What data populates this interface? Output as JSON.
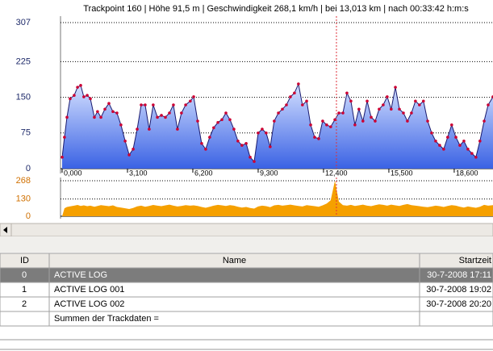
{
  "header": {
    "status": "Trackpoint 160  |  Höhe 91,5 m  |  Geschwindigkeit 268,1 km/h  |  bei  13,013 km  |  nach  00:33:42 h:m:s"
  },
  "chart_data": [
    {
      "type": "area",
      "x": [
        0,
        0.11,
        0.23,
        0.38,
        0.57,
        0.73,
        0.88,
        1.03,
        1.19,
        1.34,
        1.53,
        1.68,
        1.84,
        2.03,
        2.22,
        2.41,
        2.6,
        2.79,
        2.99,
        3.18,
        3.37,
        3.56,
        3.75,
        3.94,
        4.13,
        4.32,
        4.52,
        4.71,
        4.9,
        5.09,
        5.28,
        5.47,
        5.66,
        5.86,
        6.08,
        6.24,
        6.43,
        6.62,
        6.81,
        7.0,
        7.19,
        7.39,
        7.58,
        7.77,
        7.96,
        8.15,
        8.34,
        8.53,
        8.73,
        8.92,
        9.11,
        9.3,
        9.49,
        9.68,
        9.87,
        10.06,
        10.26,
        10.45,
        10.64,
        10.83,
        11.02,
        11.21,
        11.4,
        11.6,
        11.79,
        11.98,
        12.17,
        12.36,
        12.55,
        12.74,
        12.94,
        13.13,
        13.32,
        13.51,
        13.7,
        13.89,
        14.08,
        14.27,
        14.47,
        14.66,
        14.85,
        15.04,
        15.23,
        15.42,
        15.61,
        15.81,
        16.0,
        16.19,
        16.38,
        16.57,
        16.76,
        16.95,
        17.14,
        17.34,
        17.53,
        17.72,
        17.91,
        18.1,
        18.29,
        18.48,
        18.68,
        18.87,
        19.06,
        19.25,
        19.44,
        19.63,
        19.82,
        20.02,
        20.21,
        20.44
      ],
      "series": [
        {
          "color": "#1a1a6e",
          "marker_color": "#cc0033",
          "fill_top": "#d4e0ff",
          "fill_bottom": "#3a62e4",
          "values": [
            24,
            66,
            108,
            147,
            154,
            171,
            175,
            151,
            154,
            147,
            108,
            120,
            108,
            125,
            137,
            120,
            117,
            92,
            58,
            29,
            41,
            83,
            134,
            134,
            83,
            134,
            108,
            112,
            108,
            117,
            134,
            83,
            117,
            134,
            142,
            151,
            100,
            53,
            41,
            66,
            86,
            97,
            103,
            117,
            103,
            83,
            58,
            49,
            53,
            24,
            15,
            75,
            83,
            75,
            46,
            100,
            117,
            125,
            134,
            151,
            159,
            178,
            134,
            142,
            92,
            66,
            63,
            100,
            92,
            88,
            103,
            117,
            117,
            159,
            142,
            92,
            125,
            100,
            142,
            108,
            100,
            125,
            134,
            151,
            125,
            171,
            125,
            117,
            100,
            117,
            142,
            134,
            142,
            100,
            75,
            58,
            49,
            41,
            66,
            92,
            66,
            49,
            58,
            41,
            32,
            24,
            58,
            100,
            134,
            151
          ]
        }
      ],
      "xlim": [
        0,
        20.44
      ],
      "ylim": [
        0,
        307
      ],
      "xticks": [
        {
          "value": 0,
          "label": "0,000"
        },
        {
          "value": 3.1,
          "label": "3,100"
        },
        {
          "value": 6.2,
          "label": "6,200"
        },
        {
          "value": 9.3,
          "label": "9,300"
        },
        {
          "value": 12.4,
          "label": "12,400"
        },
        {
          "value": 15.5,
          "label": "15,500"
        },
        {
          "value": 18.6,
          "label": "18,600"
        }
      ],
      "yticks": [
        0,
        75,
        150,
        225,
        307
      ],
      "grid": true,
      "cursor_x": 13.013,
      "cursor_color": "#e0303a",
      "tick_color": "#1e2a6a"
    },
    {
      "type": "area",
      "x": [
        0,
        0.11,
        0.23,
        0.38,
        0.57,
        0.73,
        0.88,
        1.03,
        1.19,
        1.34,
        1.53,
        1.68,
        1.84,
        2.03,
        2.22,
        2.41,
        2.6,
        2.79,
        2.99,
        3.18,
        3.37,
        3.56,
        3.75,
        3.94,
        4.13,
        4.32,
        4.52,
        4.71,
        4.9,
        5.09,
        5.28,
        5.47,
        5.66,
        5.86,
        6.08,
        6.24,
        6.43,
        6.62,
        6.81,
        7.0,
        7.19,
        7.39,
        7.58,
        7.77,
        7.96,
        8.15,
        8.34,
        8.53,
        8.73,
        8.92,
        9.11,
        9.3,
        9.49,
        9.68,
        9.87,
        10.06,
        10.26,
        10.45,
        10.64,
        10.83,
        11.02,
        11.21,
        11.4,
        11.6,
        11.79,
        11.98,
        12.17,
        12.36,
        12.55,
        12.74,
        12.94,
        13.13,
        13.32,
        13.51,
        13.7,
        13.89,
        14.08,
        14.27,
        14.47,
        14.66,
        14.85,
        15.04,
        15.23,
        15.42,
        15.61,
        15.81,
        16.0,
        16.19,
        16.38,
        16.57,
        16.76,
        16.95,
        17.14,
        17.34,
        17.53,
        17.72,
        17.91,
        18.1,
        18.29,
        18.48,
        18.68,
        18.87,
        19.06,
        19.25,
        19.44,
        19.63,
        19.82,
        20.02,
        20.21,
        20.44
      ],
      "series": [
        {
          "color": "#f5a000",
          "fill_top": "#f5a000",
          "fill_bottom": "#f5a000",
          "values": [
            0,
            60,
            70,
            75,
            80,
            85,
            78,
            82,
            76,
            80,
            72,
            78,
            84,
            80,
            76,
            82,
            70,
            65,
            60,
            55,
            62,
            75,
            80,
            72,
            78,
            85,
            80,
            76,
            82,
            88,
            80,
            74,
            78,
            84,
            80,
            82,
            78,
            70,
            64,
            72,
            80,
            86,
            82,
            78,
            84,
            80,
            72,
            66,
            70,
            62,
            58,
            74,
            80,
            76,
            68,
            82,
            86,
            80,
            84,
            88,
            82,
            78,
            74,
            84,
            80,
            76,
            72,
            82,
            96,
            120,
            268,
            110,
            84,
            80,
            86,
            78,
            82,
            88,
            80,
            76,
            84,
            90,
            86,
            80,
            88,
            82,
            78,
            86,
            92,
            84,
            80,
            76,
            72,
            68,
            74,
            80,
            76,
            70,
            78,
            84,
            80,
            72,
            66,
            74,
            68,
            64,
            72,
            86,
            80,
            84
          ]
        }
      ],
      "xlim": [
        0,
        20.44
      ],
      "ylim": [
        0,
        268
      ],
      "yticks": [
        0,
        130,
        268
      ],
      "grid": true,
      "cursor_x": 13.013,
      "cursor_color": "#e0303a",
      "tick_color": "#d07000"
    }
  ],
  "table": {
    "columns": [
      "ID",
      "Name",
      "Startzeit"
    ],
    "rows": [
      [
        "0",
        "ACTIVE LOG",
        "30-7-2008 17:11"
      ],
      [
        "1",
        "ACTIVE LOG 001",
        "30-7-2008 19:02"
      ],
      [
        "2",
        "ACTIVE LOG 002",
        "30-7-2008 20:20"
      ]
    ],
    "summary": "Summen der Trackdaten =",
    "selected_row": 0
  }
}
